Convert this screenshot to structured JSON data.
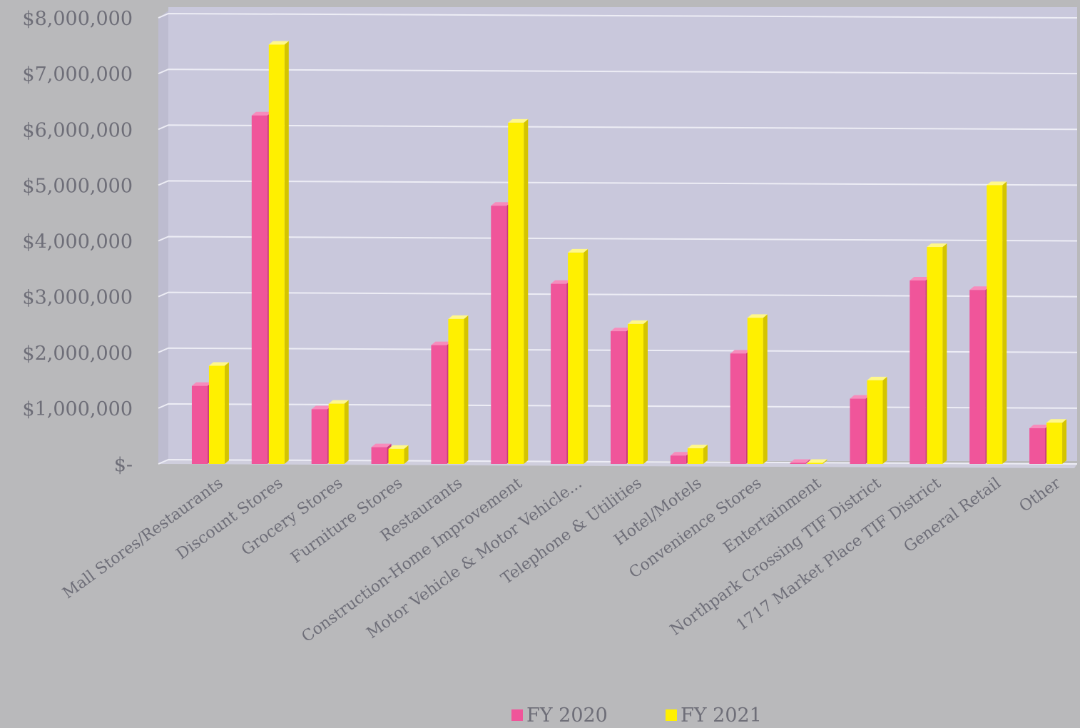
{
  "chart_data": {
    "type": "bar",
    "title": "",
    "xlabel": "",
    "ylabel": "",
    "ylim": [
      0,
      8000000
    ],
    "yticks": [
      {
        "value": 0,
        "label": "$-"
      },
      {
        "value": 1000000,
        "label": "$1,000,000"
      },
      {
        "value": 2000000,
        "label": "$2,000,000"
      },
      {
        "value": 3000000,
        "label": "$3,000,000"
      },
      {
        "value": 4000000,
        "label": "$4,000,000"
      },
      {
        "value": 5000000,
        "label": "$5,000,000"
      },
      {
        "value": 6000000,
        "label": "$6,000,000"
      },
      {
        "value": 7000000,
        "label": "$7,000,000"
      },
      {
        "value": 8000000,
        "label": "$8,000,000"
      }
    ],
    "categories": [
      "Mall Stores/Restaurants",
      "Discount Stores",
      "Grocery Stores",
      "Furniture Stores",
      "Restaurants",
      "Construction-Home Improvement",
      "Motor Vehicle & Motor Vehicle...",
      "Telephone & Utilities",
      "Hotel/Motels",
      "Convenience Stores",
      "Entertainment",
      "Northpark Crossing TIF District",
      "1717 Market Place TIF District",
      "General Retail",
      "Other"
    ],
    "series": [
      {
        "name": "FY 2020",
        "color": "#f0559a",
        "values": [
          1400000,
          6250000,
          980000,
          300000,
          2130000,
          4630000,
          3230000,
          2380000,
          150000,
          1980000,
          20000,
          1170000,
          3290000,
          3120000,
          640000
        ]
      },
      {
        "name": "FY 2021",
        "color": "#fff000",
        "values": [
          1760000,
          7520000,
          1080000,
          270000,
          2600000,
          6120000,
          3790000,
          2510000,
          280000,
          2620000,
          20000,
          1500000,
          3890000,
          5000000,
          740000
        ]
      }
    ],
    "grid": true,
    "legend": "bottom-center"
  }
}
